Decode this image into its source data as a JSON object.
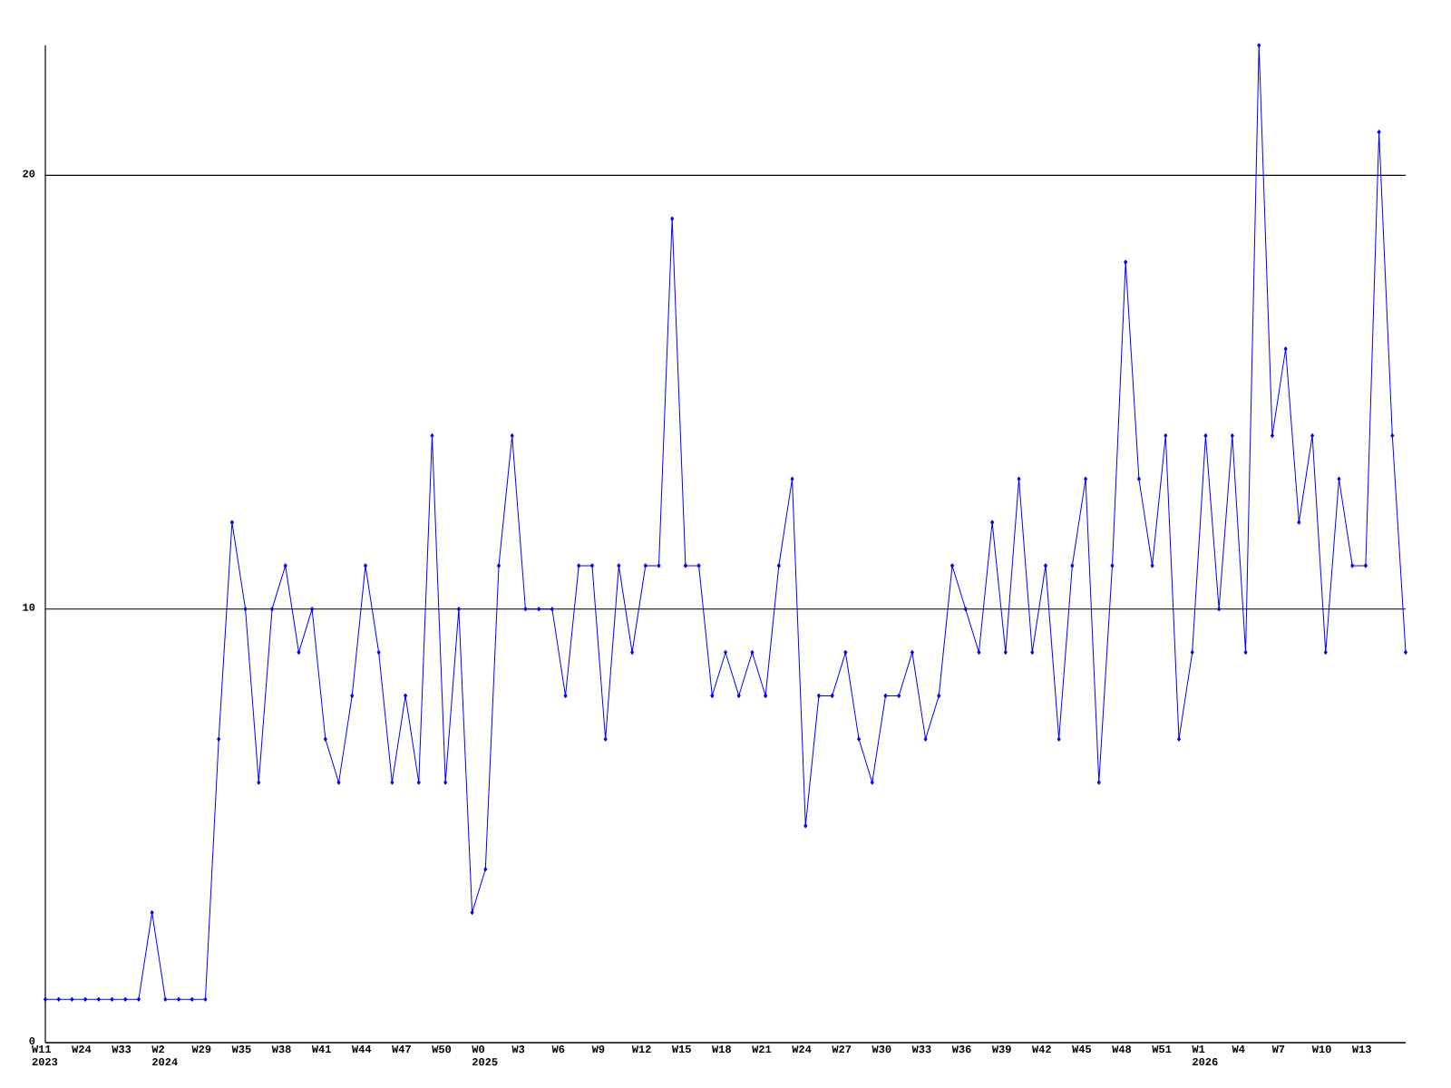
{
  "chart_data": {
    "type": "line",
    "categories": [
      "W11 2023",
      null,
      null,
      "W24",
      null,
      null,
      "W33",
      null,
      null,
      "W2 2024",
      null,
      null,
      "W29",
      null,
      null,
      "W35",
      null,
      null,
      "W38",
      null,
      null,
      "W41",
      null,
      null,
      "W44",
      null,
      null,
      "W47",
      null,
      null,
      "W50",
      null,
      null,
      "W0 2025",
      null,
      null,
      "W3",
      null,
      null,
      "W6",
      null,
      null,
      "W9",
      null,
      null,
      "W12",
      null,
      null,
      "W15",
      null,
      null,
      "W18",
      null,
      null,
      "W21",
      null,
      null,
      "W24",
      null,
      null,
      "W27",
      null,
      null,
      "W30",
      null,
      null,
      "W33",
      null,
      null,
      "W36",
      null,
      null,
      "W39",
      null,
      null,
      "W42",
      null,
      null,
      "W45",
      null,
      null,
      "W48",
      null,
      null,
      "W51",
      null,
      null,
      "W1 2026",
      null,
      null,
      "W4",
      null,
      null,
      "W7",
      null,
      null,
      "W10",
      null,
      null,
      "W13",
      null,
      null,
      null
    ],
    "values": [
      1,
      1,
      1,
      1,
      1,
      1,
      1,
      1,
      3,
      1,
      1,
      1,
      1,
      7,
      12,
      10,
      6,
      10,
      11,
      9,
      10,
      7,
      6,
      8,
      11,
      9,
      6,
      8,
      6,
      14,
      6,
      10,
      3,
      4,
      11,
      14,
      10,
      10,
      10,
      8,
      11,
      11,
      7,
      11,
      9,
      11,
      11,
      19,
      11,
      11,
      8,
      9,
      8,
      9,
      8,
      11,
      13,
      5,
      8,
      8,
      9,
      7,
      6,
      8,
      8,
      9,
      7,
      8,
      11,
      10,
      9,
      12,
      9,
      13,
      9,
      11,
      7,
      11,
      13,
      6,
      11,
      18,
      13,
      11,
      14,
      7,
      9,
      14,
      10,
      14,
      9,
      23,
      14,
      16,
      12,
      14,
      9,
      13,
      11,
      11,
      21,
      14,
      9
    ],
    "color": "#0000ff",
    "ylim": [
      0,
      23
    ],
    "yticks": [
      0,
      10,
      20
    ],
    "grid": "y",
    "marker": "diamond",
    "line_style": "solid"
  }
}
